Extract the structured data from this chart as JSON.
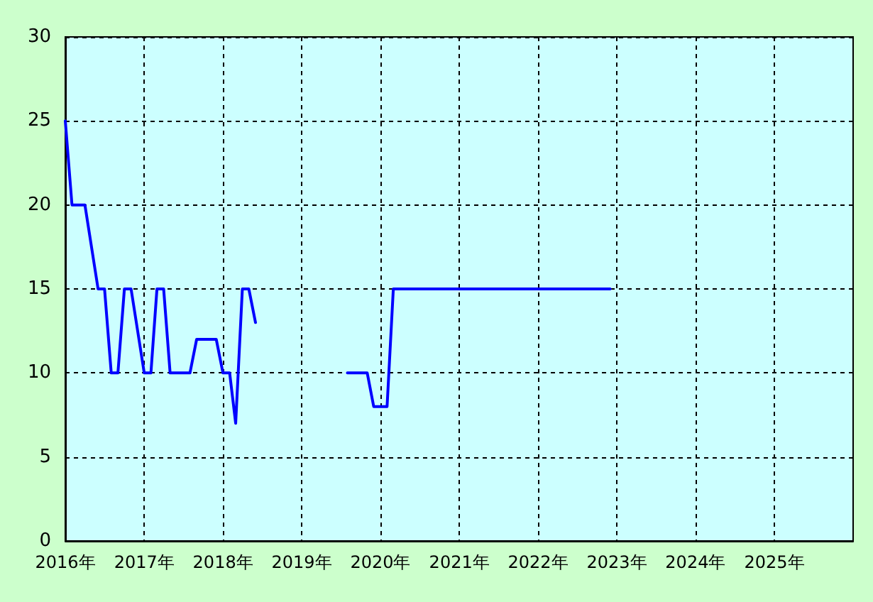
{
  "chart_data": {
    "type": "line",
    "x": [
      "2016-01",
      "2016-02",
      "2016-04",
      "2016-06",
      "2016-07",
      "2016-08",
      "2016-09",
      "2016-10",
      "2016-11",
      "2017-01",
      "2017-02",
      "2017-03",
      "2017-04",
      "2017-05",
      "2017-08",
      "2017-09",
      "2017-12",
      "2018-01",
      "2018-02",
      "2018-03",
      "2018-04",
      "2018-05",
      "2018-06",
      "2018-07",
      "2019-08",
      "2019-11",
      "2019-12",
      "2020-02",
      "2020-03",
      "2022-12"
    ],
    "series": [
      {
        "color": "#0000ff",
        "values": [
          25,
          20,
          20,
          15,
          15,
          10,
          10,
          15,
          15,
          10,
          10,
          15,
          15,
          10,
          10,
          12,
          12,
          10,
          10,
          7,
          15,
          15,
          13,
          null,
          10,
          10,
          8,
          8,
          15,
          15
        ]
      }
    ],
    "xlim": [
      "2016-01",
      "2026-01"
    ],
    "xticks": [
      {
        "value": "2016-01",
        "label": "2016年"
      },
      {
        "value": "2017-01",
        "label": "2017年"
      },
      {
        "value": "2018-01",
        "label": "2018年"
      },
      {
        "value": "2019-01",
        "label": "2019年"
      },
      {
        "value": "2020-01",
        "label": "2020年"
      },
      {
        "value": "2021-01",
        "label": "2021年"
      },
      {
        "value": "2022-01",
        "label": "2022年"
      },
      {
        "value": "2023-01",
        "label": "2023年"
      },
      {
        "value": "2024-01",
        "label": "2024年"
      },
      {
        "value": "2025-01",
        "label": "2025年"
      }
    ],
    "ylim": [
      0,
      30
    ],
    "yticks": [
      0,
      5,
      10,
      15,
      20,
      25,
      30
    ],
    "grid": true,
    "marker": "none",
    "line_style": "solid"
  }
}
